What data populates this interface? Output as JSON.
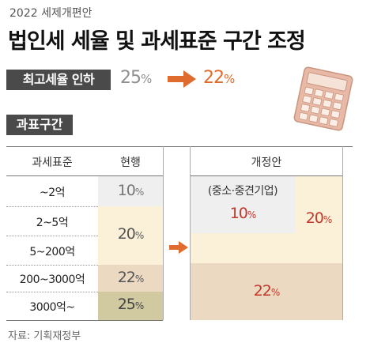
{
  "header": {
    "subtitle": "2022 세제개편안",
    "title": "법인세 세율 및 과세표준 구간 조정"
  },
  "top_rate": {
    "badge": "최고세율 인하",
    "old_value": "25",
    "new_value": "22",
    "unit": "%"
  },
  "brackets": {
    "badge": "과표구간",
    "col_headers": {
      "bracket": "과세표준",
      "current": "현행",
      "proposed": "개정안"
    },
    "rows": [
      {
        "label": "~2억"
      },
      {
        "label": "2~5억"
      },
      {
        "label": "5~200억"
      },
      {
        "label": "200~3000억"
      },
      {
        "label": "3000억~"
      }
    ],
    "current": [
      {
        "value": "10",
        "unit": "%"
      },
      {
        "value": "20",
        "unit": "%"
      },
      {
        "value": "22",
        "unit": "%"
      },
      {
        "value": "25",
        "unit": "%"
      }
    ],
    "proposed": {
      "sme_label": "(중소·중견기업)",
      "sme_value": "10",
      "mid_value": "20",
      "top_value": "22",
      "unit": "%"
    }
  },
  "source": "자료: 기획재정부",
  "colors": {
    "badge_bg": "#4a4a4a",
    "accent_orange": "#e06b2e",
    "value_red": "#c0392b",
    "cell_light_yellow": "#fbf1d8",
    "cell_peach": "#ecd9c2",
    "cell_olive": "#d1caa0",
    "cell_gray": "#efefef"
  },
  "icons": {
    "arrow": "right-arrow-icon",
    "calculator": "calculator-icon"
  }
}
